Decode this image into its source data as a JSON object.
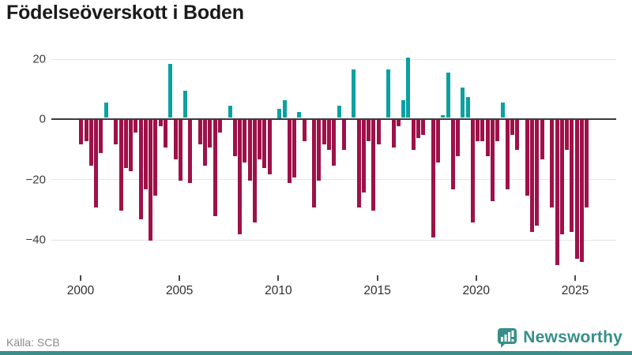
{
  "title": "Födelseöverskott i Boden",
  "source": "Källa: SCB",
  "brand": {
    "name": "Newsworthy",
    "color": "#368f8b"
  },
  "chart_data": {
    "type": "bar",
    "title": "Födelseöverskott i Boden",
    "xlabel": "",
    "ylabel": "",
    "unit_period": "quarter",
    "start_period": "2000Q1",
    "end_period": "2025Q3",
    "values": [
      -8,
      -7,
      -15,
      -29,
      -11,
      5,
      0,
      -8,
      -30,
      -16,
      -17,
      -4,
      -33,
      -23,
      -40,
      -25,
      -2,
      -9,
      18,
      -13,
      -20,
      9,
      -21,
      0,
      -8,
      -15,
      -9,
      -32,
      -4,
      0,
      4,
      -12,
      -38,
      -14,
      -20,
      -34,
      -13,
      -16,
      -18,
      0,
      3,
      6,
      -21,
      -19,
      2,
      -7,
      0,
      -29,
      -20,
      -8,
      -10,
      -15,
      4,
      -10,
      0,
      16,
      -29,
      -24,
      -7,
      -30,
      -8,
      0,
      16,
      -9,
      -2,
      6,
      20,
      -10,
      -6,
      -5,
      0,
      -39,
      -14,
      1,
      15,
      -23,
      -12,
      10,
      7,
      -34,
      -7,
      -7,
      -12,
      -27,
      -7,
      5,
      -23,
      -5,
      -10,
      0,
      -25,
      -37,
      -35,
      -13,
      0,
      -29,
      -48,
      -38,
      -10,
      -37,
      -46,
      -47,
      -29
    ],
    "x_ticks": [
      2000,
      2005,
      2010,
      2015,
      2020,
      2025
    ],
    "y_ticks": [
      20,
      0,
      -20,
      -40
    ],
    "ylim": [
      -50,
      22
    ],
    "grid": true,
    "legend": "none",
    "positive_color": "#0ba1a1",
    "negative_color": "#9e1149",
    "zero_line_color": "#3b3b3b",
    "grid_color": "#e4e4e4"
  }
}
